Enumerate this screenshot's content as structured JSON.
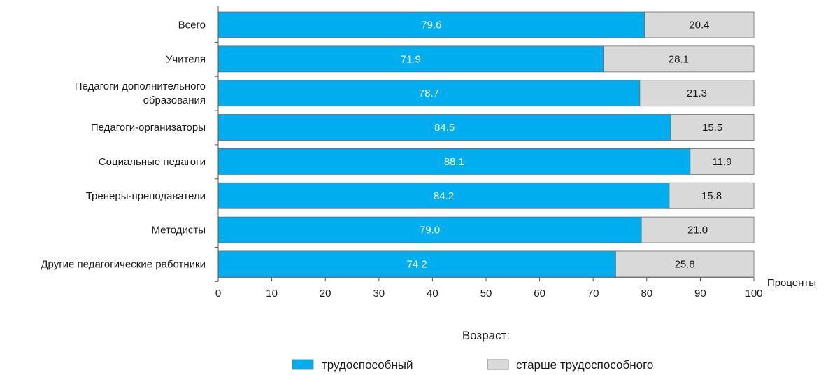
{
  "chart_data": {
    "type": "bar",
    "orientation": "horizontal",
    "stacked": true,
    "categories": [
      [
        "Всего"
      ],
      [
        "Учителя"
      ],
      [
        "Педагоги дополнительного",
        "образования"
      ],
      [
        "Педагоги-организаторы"
      ],
      [
        "Социальные педагоги"
      ],
      [
        "Тренеры-преподаватели"
      ],
      [
        "Методисты"
      ],
      [
        "Другие педагогические работники"
      ]
    ],
    "series": [
      {
        "name": "трудоспособный",
        "color": "#00aeef",
        "values": [
          79.6,
          71.9,
          78.7,
          84.5,
          88.1,
          84.2,
          79.0,
          74.2
        ]
      },
      {
        "name": "старше трудоспособного",
        "color": "#d9d9d9",
        "values": [
          20.4,
          28.1,
          21.3,
          15.5,
          11.9,
          15.8,
          21.0,
          25.8
        ]
      }
    ],
    "xlim": [
      0,
      100
    ],
    "xticks": [
      0,
      10,
      20,
      30,
      40,
      50,
      60,
      70,
      80,
      90,
      100
    ],
    "xlabel": "Проценты",
    "legend_title": "Возраст:",
    "legend_position": "bottom-center",
    "grid": false
  }
}
